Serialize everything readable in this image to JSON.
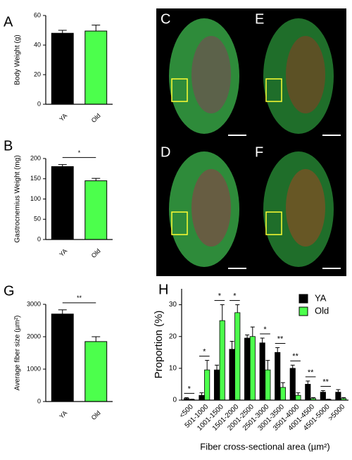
{
  "chart_data": [
    {
      "type": "bar",
      "panel": "A",
      "ylabel": "Body Weight (g)",
      "categories": [
        "YA",
        "Old"
      ],
      "values": [
        48,
        49.5
      ],
      "errors": [
        2,
        4
      ],
      "colors": [
        "#000000",
        "#4cff4c"
      ],
      "ylim": [
        0,
        60
      ],
      "yticks": [
        0,
        20,
        40,
        60
      ]
    },
    {
      "type": "bar",
      "panel": "B",
      "ylabel": "Gastrocnemius Weight (mg)",
      "categories": [
        "YA",
        "Old"
      ],
      "values": [
        180,
        145
      ],
      "errors": [
        5,
        6
      ],
      "colors": [
        "#000000",
        "#4cff4c"
      ],
      "ylim": [
        0,
        200
      ],
      "yticks": [
        0,
        50,
        100,
        150,
        200
      ],
      "significance": "*"
    },
    {
      "type": "bar",
      "panel": "G",
      "ylabel": "Average fiber size (µm²)",
      "categories": [
        "YA",
        "Old"
      ],
      "values": [
        2700,
        1850
      ],
      "errors": [
        130,
        150
      ],
      "colors": [
        "#000000",
        "#4cff4c"
      ],
      "ylim": [
        0,
        3000
      ],
      "yticks": [
        0,
        1000,
        2000,
        3000
      ],
      "significance": "**"
    },
    {
      "type": "grouped-bar",
      "panel": "H",
      "ylabel": "Proportion (%)",
      "xlabel": "Fiber cross-sectional area (µm²)",
      "categories": [
        "<500",
        "501-1000",
        "1001-1500",
        "1501-2000",
        "2001-2500",
        "2501-3000",
        "3001-3500",
        "3501-4000",
        "4001-4500",
        "4501-5000",
        ">5000"
      ],
      "series": [
        {
          "name": "YA",
          "color": "#000000",
          "values": [
            0.5,
            1.5,
            9.5,
            16,
            19.5,
            18,
            15,
            10,
            5,
            2.5,
            2.5
          ],
          "errors": [
            0.3,
            0.8,
            1.5,
            2.5,
            1,
            1.5,
            1.5,
            1,
            1,
            0.5,
            0.8
          ]
        },
        {
          "name": "Old",
          "color": "#4cff4c",
          "values": [
            0.2,
            9.5,
            25,
            27.5,
            20,
            9.5,
            4,
            1.5,
            0.5,
            0.2,
            0.5
          ],
          "errors": [
            0.1,
            3,
            5,
            2.5,
            3,
            3,
            1.5,
            0.8,
            0.3,
            0.1,
            0.3
          ]
        }
      ],
      "ylim": [
        0,
        35
      ],
      "yticks": [
        0,
        10,
        20,
        30
      ],
      "legend": "upper right",
      "annotations": [
        {
          "text": "*",
          "category": "<500"
        },
        {
          "text": "*",
          "category": "501-1000"
        },
        {
          "text": "*",
          "category": "1001-1500"
        },
        {
          "text": "*",
          "category": "1501-2000"
        },
        {
          "text": "*",
          "category": "2501-3000"
        },
        {
          "text": "**",
          "category": "3001-3500"
        },
        {
          "text": "**",
          "category": "3501-4000"
        },
        {
          "text": "**",
          "category": "4001-4500"
        },
        {
          "text": "**",
          "category": "4501-5000"
        }
      ]
    }
  ],
  "micrographs": {
    "panels": [
      "C",
      "E",
      "D",
      "F"
    ]
  }
}
